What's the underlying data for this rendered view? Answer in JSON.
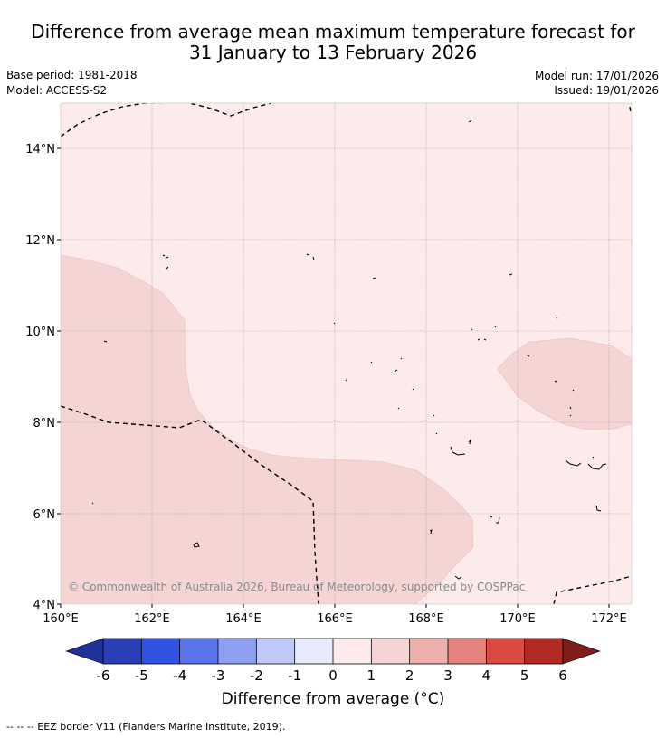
{
  "title": {
    "line1": "Difference from average mean maximum temperature forecast for",
    "line2": "31 January to 13 February 2026"
  },
  "meta": {
    "base_period": "Base period: 1981-2018",
    "model": "Model: ACCESS-S2",
    "model_run": "Model run: 17/01/2026",
    "issued": "Issued: 19/01/2026"
  },
  "map": {
    "lon_range": [
      160,
      172.5
    ],
    "lat_range": [
      4,
      15
    ],
    "lon_ticks": [
      "160°E",
      "162°E",
      "164°E",
      "166°E",
      "168°E",
      "170°E",
      "172°E"
    ],
    "lat_ticks": [
      "4°N",
      "6°N",
      "8°N",
      "10°N",
      "12°N",
      "14°N"
    ],
    "background_category": "0 to 1",
    "copyright": "© Commonwealth of Australia 2026, Bureau of Meteorology, supported by COSPPac",
    "colors": {
      "light": "#fcebea",
      "medium": "#f5d5d3",
      "eez": "#000000"
    }
  },
  "colorbar": {
    "title": "Difference from average (°C)",
    "ticks": [
      "-6",
      "-5",
      "-4",
      "-3",
      "-2",
      "-1",
      "0",
      "1",
      "2",
      "3",
      "4",
      "5",
      "6"
    ],
    "colors": [
      "#22319a",
      "#2a3fb6",
      "#3252e3",
      "#5b74e8",
      "#8d9ff0",
      "#c0c8f7",
      "#e6eafc",
      "#fcebea",
      "#f5d5d3",
      "#eeb0ad",
      "#e6827d",
      "#db4b43",
      "#b22a24",
      "#7f1d1b"
    ]
  },
  "footer": "--  --  -- EEZ border V11 (Flanders Marine Institute, 2019)."
}
